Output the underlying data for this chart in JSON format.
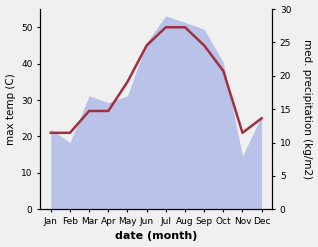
{
  "months": [
    "Jan",
    "Feb",
    "Mar",
    "Apr",
    "May",
    "Jun",
    "Jul",
    "Aug",
    "Sep",
    "Oct",
    "Nov",
    "Dec"
  ],
  "temp": [
    21,
    21,
    27,
    27,
    35,
    45,
    50,
    50,
    45,
    38,
    21,
    25
  ],
  "precip": [
    12,
    10,
    17,
    16,
    17,
    25,
    29,
    28,
    27,
    22,
    8,
    14
  ],
  "temp_ylim": [
    0,
    55
  ],
  "temp_yticks": [
    0,
    10,
    20,
    30,
    40,
    50
  ],
  "precip_ylim": [
    0,
    30
  ],
  "precip_yticks": [
    0,
    5,
    10,
    15,
    20,
    25,
    30
  ],
  "fill_color": "#b0bce8",
  "line_color": "#a03040",
  "line_width": 1.8,
  "ylabel_left": "max temp (C)",
  "ylabel_right": "med. precipitation (kg/m2)",
  "xlabel": "date (month)",
  "xlabel_fontsize": 8,
  "ylabel_fontsize": 7.5,
  "tick_fontsize": 6.5,
  "bg_color": "#f0f0f0",
  "plot_bg_color": "#ffffff"
}
